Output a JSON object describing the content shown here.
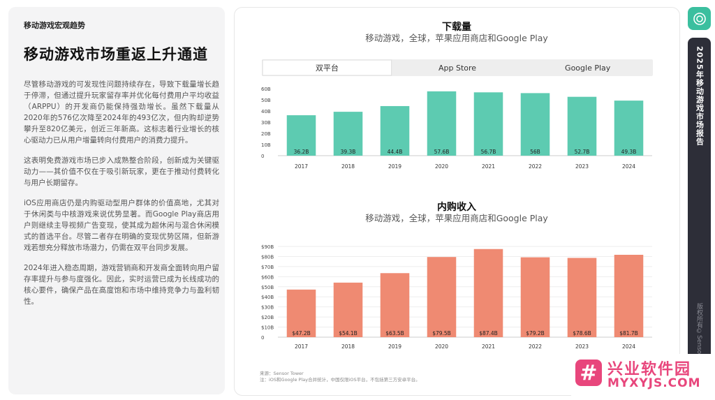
{
  "left": {
    "section_tag": "移动游戏宏观趋势",
    "title": "移动游戏市场重返上升通道",
    "paragraphs": [
      "尽管移动游戏的可发现性问题持续存在，导致下载量增长趋于停滞，但通过提升玩家留存率并优化每付费用户平均收益（ARPPU）的开发商仍能保持强劲增长。虽然下载量从2020年的576亿次降至2024年的493亿次，但内购却逆势攀升至820亿美元，创近三年新高。这标志着行业增长的核心驱动力已从用户增量转向付费用户的消费力提升。",
      "这表明免费游戏市场已步入成熟整合阶段，创新成为关键驱动力——其价值不仅在于吸引新玩家，更在于推动付费转化与用户长期留存。",
      "iOS应用商店仍是内购驱动型用户群体的价值高地，尤其对于休闲类与中核游戏来说优势显著。而Google Play商店用户则继续主导视频广告变现，使其成为超休闲与混合休闲模式的首选平台。尽管二者存在明确的变现优势区隔，但新游戏若想充分释放市场潜力，仍需在双平台同步发展。",
      "2024年进入稳态周期，游戏营销商和开发商全面转向用户留存率提升与参与度强化。因此，实时运营已成为长线成功的核心要件，确保产品在高度饱和市场中维持竞争力与盈利韧性。"
    ]
  },
  "tabs": [
    {
      "label": "双平台",
      "active": true
    },
    {
      "label": "App Store",
      "active": false
    },
    {
      "label": "Google Play",
      "active": false
    }
  ],
  "chart_data": [
    {
      "type": "bar",
      "title": "下载量",
      "subtitle": "移动游戏，全球，苹果应用商店和Google Play",
      "categories": [
        "2017",
        "2018",
        "2019",
        "2020",
        "2021",
        "2022",
        "2023",
        "2024"
      ],
      "values": [
        36.2,
        39.3,
        44.4,
        57.6,
        56.7,
        56.0,
        52.7,
        49.3
      ],
      "value_labels": [
        "36.2B",
        "39.3B",
        "44.4B",
        "57.6B",
        "56.7B",
        "56B",
        "52.7B",
        "49.3B"
      ],
      "ylim": [
        0,
        60
      ],
      "yticks": [
        "0",
        "10B",
        "20B",
        "30B",
        "40B",
        "50B",
        "60B"
      ],
      "color": "#5dcbb1"
    },
    {
      "type": "bar",
      "title": "内购收入",
      "subtitle": "移动游戏，全球，苹果应用商店和Google Play",
      "categories": [
        "2017",
        "2018",
        "2019",
        "2020",
        "2021",
        "2022",
        "2023",
        "2024"
      ],
      "values": [
        47.2,
        54.1,
        63.5,
        79.5,
        87.4,
        79.2,
        78.6,
        81.7
      ],
      "value_labels": [
        "$47.2B",
        "$54.1B",
        "$63.5B",
        "$79.5B",
        "$87.4B",
        "$79.2B",
        "$78.6B",
        "$81.7B"
      ],
      "ylim": [
        0,
        90
      ],
      "yticks": [
        "0",
        "$10B",
        "$20B",
        "$30B",
        "$40B",
        "$50B",
        "$60B",
        "$70B",
        "$80B",
        "$90B"
      ],
      "color": "#ef8a72"
    }
  ],
  "source": {
    "line1": "来源：Sensor Tower",
    "line2": "注：iOS和Google Play合并统计，中国仅限iOS平台，不包括第三方安卓平台。"
  },
  "rail": {
    "title": "2025年移动游戏市场报告",
    "copyright": "版权所有©Sensor"
  },
  "watermark": {
    "logo_char": "#",
    "name": "兴业软件园",
    "url": "MYXYJS.COM"
  },
  "colors": {
    "teal": "#5dcbb1",
    "salmon": "#ef8a72",
    "rail_dark": "#2d2e38",
    "accent": "#3bbf9f",
    "watermark": "#e8467c"
  }
}
